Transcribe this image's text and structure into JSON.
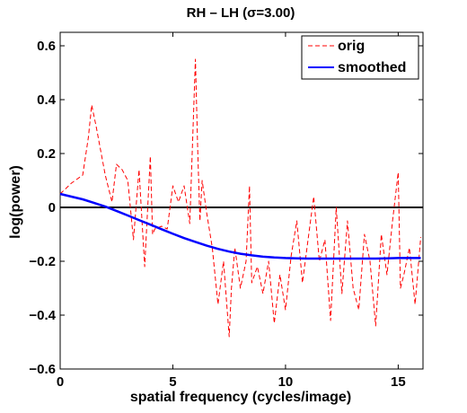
{
  "chart_data": {
    "type": "line",
    "title": "RH – LH (σ=3.00)",
    "xlabel": "spatial frequency (cycles/image)",
    "ylabel": "log(power)",
    "xlim": [
      0,
      16.1
    ],
    "ylim": [
      -0.6,
      0.65
    ],
    "xticks": [
      0,
      5,
      10,
      15
    ],
    "xtick_labels": [
      "0",
      "5",
      "10",
      "15"
    ],
    "yticks": [
      -0.6,
      -0.4,
      -0.2,
      0,
      0.2,
      0.4,
      0.6
    ],
    "ytick_labels": [
      "−0.6",
      "−0.4",
      "−0.2",
      "0",
      "0.2",
      "0.4",
      "0.6"
    ],
    "grid": false,
    "legend_position": "top-right",
    "reference_line": {
      "y": 0,
      "color": "#000000"
    },
    "series": [
      {
        "name": "orig",
        "color": "#ff0000",
        "style": "dashed",
        "x": [
          0,
          0.5,
          1,
          1.25,
          1.4,
          1.6,
          2,
          2.3,
          2.5,
          2.75,
          3,
          3.25,
          3.5,
          3.75,
          4,
          4.1,
          4.2,
          4.5,
          4.75,
          5,
          5.25,
          5.5,
          5.75,
          6,
          6.1,
          6.2,
          6.3,
          6.5,
          6.75,
          7,
          7.25,
          7.5,
          7.6,
          7.75,
          8,
          8.25,
          8.4,
          8.5,
          8.75,
          9,
          9.25,
          9.5,
          9.75,
          10,
          10.25,
          10.5,
          10.75,
          11,
          11.25,
          11.5,
          11.75,
          12,
          12.25,
          12.5,
          12.75,
          13,
          13.25,
          13.5,
          13.75,
          14,
          14.25,
          14.5,
          14.75,
          15,
          15.1,
          15.25,
          15.5,
          15.75,
          16
        ],
        "y": [
          0.05,
          0.09,
          0.12,
          0.26,
          0.38,
          0.3,
          0.12,
          0.02,
          0.16,
          0.14,
          0.1,
          -0.12,
          0.14,
          -0.22,
          0.19,
          -0.1,
          -0.08,
          -0.07,
          -0.08,
          0.08,
          0.02,
          0.08,
          -0.06,
          0.55,
          0.22,
          -0.05,
          0.1,
          -0.02,
          -0.15,
          -0.36,
          -0.2,
          -0.48,
          -0.3,
          -0.15,
          -0.3,
          -0.2,
          0.08,
          -0.28,
          -0.22,
          -0.32,
          -0.2,
          -0.43,
          -0.25,
          -0.38,
          -0.18,
          -0.05,
          -0.28,
          -0.12,
          0.04,
          -0.2,
          -0.12,
          -0.42,
          0.0,
          -0.32,
          -0.05,
          -0.3,
          -0.38,
          -0.1,
          -0.2,
          -0.44,
          -0.1,
          -0.25,
          -0.05,
          0.13,
          -0.3,
          -0.25,
          -0.15,
          -0.36,
          -0.11
        ]
      },
      {
        "name": "smoothed",
        "color": "#0000ff",
        "style": "solid",
        "x": [
          0,
          0.5,
          1,
          1.5,
          2,
          2.5,
          3,
          3.5,
          4,
          4.5,
          5,
          5.5,
          6,
          6.5,
          7,
          7.5,
          8,
          8.5,
          9,
          9.5,
          10,
          10.5,
          11,
          11.5,
          12,
          12.5,
          13,
          13.5,
          14,
          14.5,
          15,
          15.5,
          16
        ],
        "y": [
          0.05,
          0.04,
          0.03,
          0.017,
          0.003,
          -0.013,
          -0.03,
          -0.047,
          -0.064,
          -0.081,
          -0.098,
          -0.114,
          -0.128,
          -0.142,
          -0.154,
          -0.164,
          -0.172,
          -0.178,
          -0.183,
          -0.186,
          -0.188,
          -0.189,
          -0.19,
          -0.19,
          -0.19,
          -0.19,
          -0.19,
          -0.19,
          -0.19,
          -0.189,
          -0.188,
          -0.188,
          -0.188
        ]
      }
    ]
  }
}
